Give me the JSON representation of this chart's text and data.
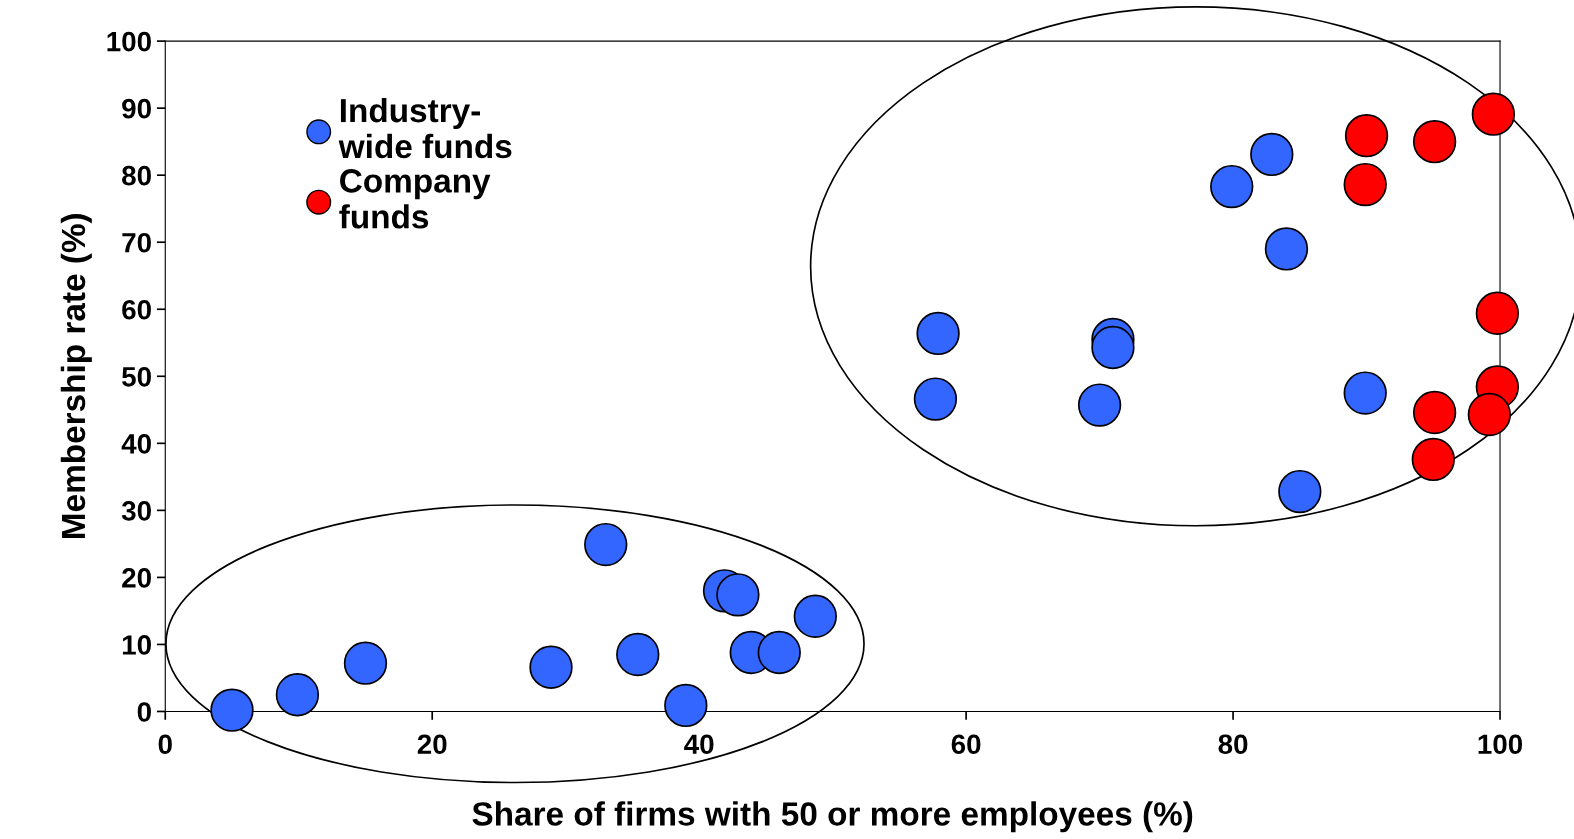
{
  "chart_data": {
    "type": "scatter",
    "xlabel": "Share of firms with 50 or more employees (%)",
    "ylabel": "Membership rate (%)",
    "xlim": [
      0,
      100
    ],
    "xticks": [
      0,
      20,
      40,
      60,
      80,
      100
    ],
    "ylim": [
      0,
      100
    ],
    "yticks": [
      0,
      10,
      20,
      30,
      40,
      50,
      60,
      70,
      80,
      90,
      100
    ],
    "grid": false,
    "legend": "top left",
    "marker": "circle",
    "series": [
      {
        "name": "Industry-\nwide funds",
        "color": "#3366ff",
        "x": [
          5,
          9.9,
          15,
          28.9,
          33,
          35.4,
          39,
          41.9,
          42.9,
          43.9,
          46,
          48.7,
          57.9,
          57.7,
          70,
          71,
          71,
          79.9,
          82.9,
          84,
          89.9,
          85
        ],
        "values": [
          0.2,
          2.5,
          7.2,
          6.6,
          24.9,
          8.5,
          0.9,
          18,
          17.4,
          8.8,
          8.8,
          14.2,
          56.4,
          46.6,
          45.7,
          55.5,
          54.3,
          78.3,
          83.1,
          69,
          47.5,
          32.8
        ]
      },
      {
        "name": "Company\nfunds",
        "color": "#ff0000",
        "x": [
          90,
          89.9,
          95.1,
          99.5,
          99.8,
          99.8,
          99.2,
          95.1,
          95
        ],
        "values": [
          85.9,
          78.6,
          85,
          89.1,
          59.4,
          48.4,
          44.3,
          44.6,
          37.6
        ]
      }
    ]
  }
}
